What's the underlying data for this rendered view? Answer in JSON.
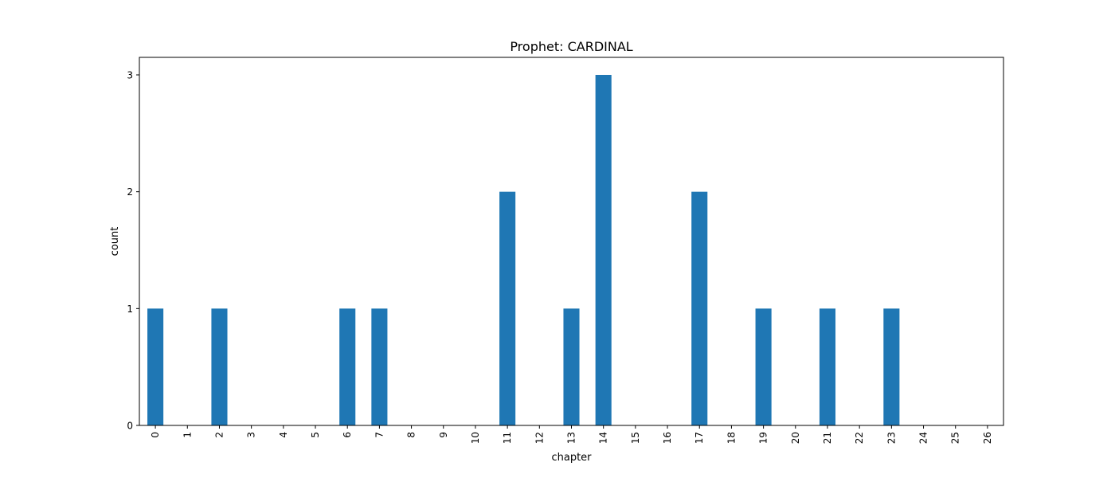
{
  "chart_data": {
    "type": "bar",
    "title": "Prophet: CARDINAL",
    "xlabel": "chapter",
    "ylabel": "count",
    "categories": [
      "0",
      "1",
      "2",
      "3",
      "4",
      "5",
      "6",
      "7",
      "8",
      "9",
      "10",
      "11",
      "12",
      "13",
      "14",
      "15",
      "16",
      "17",
      "18",
      "19",
      "20",
      "21",
      "22",
      "23",
      "24",
      "25",
      "26"
    ],
    "values": [
      1,
      0,
      1,
      0,
      0,
      0,
      1,
      1,
      0,
      0,
      0,
      2,
      0,
      1,
      3,
      0,
      0,
      2,
      0,
      1,
      0,
      1,
      0,
      1,
      0,
      0,
      0
    ],
    "ylim": [
      0,
      3.15
    ],
    "yticks": [
      0,
      1,
      2,
      3
    ],
    "bar_color": "#1f77b4",
    "grid": false,
    "legend": "none"
  }
}
